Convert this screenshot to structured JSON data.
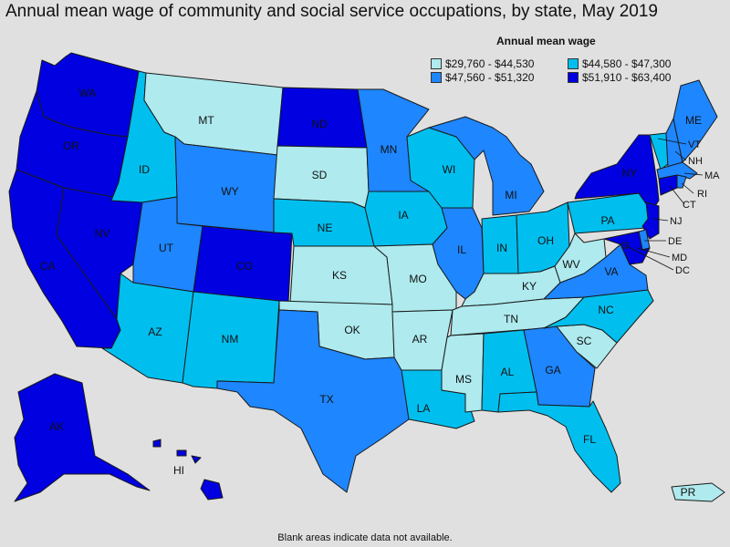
{
  "title": "Annual mean wage of community and social service occupations, by state, May 2019",
  "legend": {
    "title": "Annual mean wage",
    "items": [
      {
        "label": "$29,760 - $44,530",
        "color": "#aeeaee"
      },
      {
        "label": "$44,580 - $47,300",
        "color": "#00bfef"
      },
      {
        "label": "$47,560 - $51,320",
        "color": "#1e86ff"
      },
      {
        "label": "$51,910 - $63,400",
        "color": "#0000e0"
      }
    ]
  },
  "footnote": "Blank areas indicate data not available.",
  "states": {
    "WA": {
      "label": "WA",
      "tier": 3
    },
    "OR": {
      "label": "OR",
      "tier": 3
    },
    "CA": {
      "label": "CA",
      "tier": 3
    },
    "NV": {
      "label": "NV",
      "tier": 3
    },
    "ID": {
      "label": "ID",
      "tier": 1
    },
    "MT": {
      "label": "MT",
      "tier": 0
    },
    "WY": {
      "label": "WY",
      "tier": 2
    },
    "UT": {
      "label": "UT",
      "tier": 2
    },
    "CO": {
      "label": "CO",
      "tier": 3
    },
    "AZ": {
      "label": "AZ",
      "tier": 1
    },
    "NM": {
      "label": "NM",
      "tier": 1
    },
    "ND": {
      "label": "ND",
      "tier": 3
    },
    "SD": {
      "label": "SD",
      "tier": 0
    },
    "NE": {
      "label": "NE",
      "tier": 1
    },
    "KS": {
      "label": "KS",
      "tier": 0
    },
    "OK": {
      "label": "OK",
      "tier": 0
    },
    "TX": {
      "label": "TX",
      "tier": 2
    },
    "MN": {
      "label": "MN",
      "tier": 2
    },
    "IA": {
      "label": "IA",
      "tier": 1
    },
    "MO": {
      "label": "MO",
      "tier": 0
    },
    "AR": {
      "label": "AR",
      "tier": 0
    },
    "LA": {
      "label": "LA",
      "tier": 1
    },
    "WI": {
      "label": "WI",
      "tier": 1
    },
    "IL": {
      "label": "IL",
      "tier": 2
    },
    "MI": {
      "label": "MI",
      "tier": 2
    },
    "IN": {
      "label": "IN",
      "tier": 1
    },
    "OH": {
      "label": "OH",
      "tier": 1
    },
    "KY": {
      "label": "KY",
      "tier": 0
    },
    "TN": {
      "label": "TN",
      "tier": 0
    },
    "MS": {
      "label": "MS",
      "tier": 0
    },
    "AL": {
      "label": "AL",
      "tier": 1
    },
    "GA": {
      "label": "GA",
      "tier": 2
    },
    "FL": {
      "label": "FL",
      "tier": 1
    },
    "SC": {
      "label": "SC",
      "tier": 0
    },
    "NC": {
      "label": "NC",
      "tier": 1
    },
    "VA": {
      "label": "VA",
      "tier": 2
    },
    "WV": {
      "label": "WV",
      "tier": 0
    },
    "PA": {
      "label": "PA",
      "tier": 1
    },
    "NY": {
      "label": "NY",
      "tier": 3
    },
    "VT": {
      "label": "VT",
      "tier": 1
    },
    "NH": {
      "label": "NH",
      "tier": 2
    },
    "ME": {
      "label": "ME",
      "tier": 2
    },
    "MA": {
      "label": "MA",
      "tier": 2
    },
    "RI": {
      "label": "RI",
      "tier": 2
    },
    "CT": {
      "label": "CT",
      "tier": 3
    },
    "NJ": {
      "label": "NJ",
      "tier": 3
    },
    "DE": {
      "label": "DE",
      "tier": 2
    },
    "MD": {
      "label": "MD",
      "tier": 3
    },
    "DC": {
      "label": "DC",
      "tier": 3
    },
    "AK": {
      "label": "AK",
      "tier": 3
    },
    "HI": {
      "label": "HI",
      "tier": 3
    },
    "PR": {
      "label": "PR",
      "tier": 0
    }
  }
}
